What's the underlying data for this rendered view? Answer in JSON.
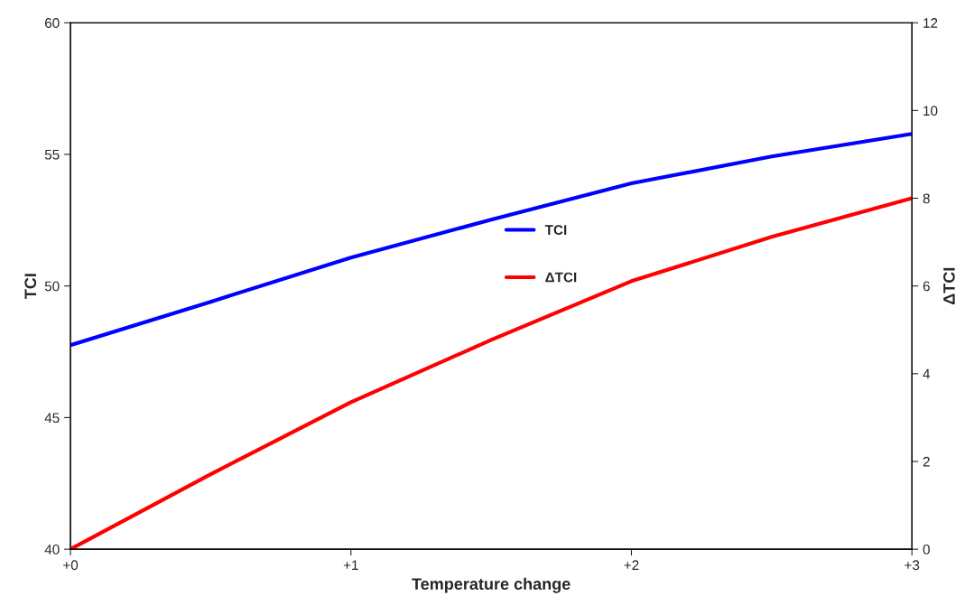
{
  "chart_data": {
    "type": "line",
    "xlabel": "Temperature change",
    "ylabel": "TCI",
    "y2label": "ΔTCI",
    "x": [
      0,
      0.5,
      1,
      1.5,
      2,
      2.5,
      3
    ],
    "series": [
      {
        "name": "TCI",
        "color": "#0000ff",
        "values": [
          47.75,
          49.4,
          51.08,
          52.52,
          53.9,
          54.92,
          55.78
        ]
      },
      {
        "name": "ΔTCI",
        "color": "#ff0000",
        "axis": "y2",
        "values": [
          0,
          1.71,
          3.35,
          4.77,
          6.11,
          7.12,
          8.0
        ]
      }
    ],
    "xlim": [
      0,
      3
    ],
    "xticks": [
      {
        "value": 0,
        "label": "+0"
      },
      {
        "value": 1,
        "label": "+1"
      },
      {
        "value": 2,
        "label": "+2"
      },
      {
        "value": 3,
        "label": "+3"
      }
    ],
    "ylim": [
      40,
      60
    ],
    "yticks": [
      40,
      45,
      50,
      55,
      60
    ],
    "y2lim": [
      0,
      12
    ],
    "y2ticks": [
      0,
      2,
      4,
      6,
      8,
      10,
      12
    ],
    "grid": false,
    "legend": "top",
    "marker": "none",
    "line_style": "solid"
  }
}
